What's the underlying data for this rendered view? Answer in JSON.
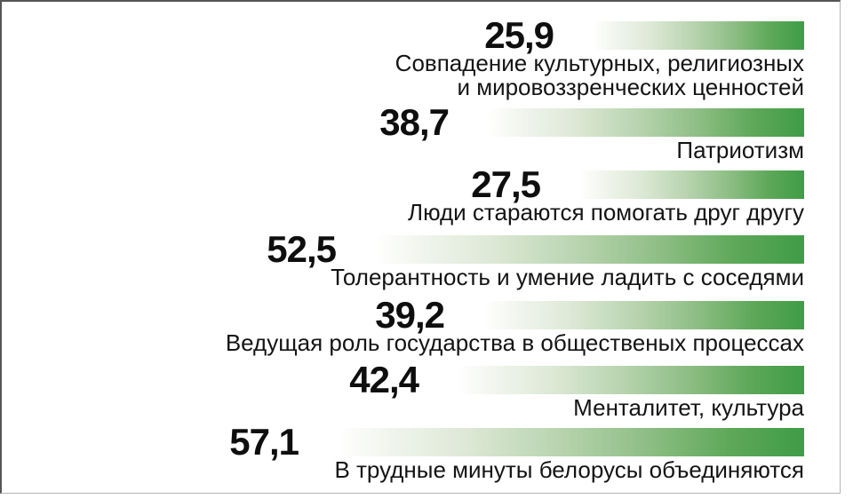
{
  "chart_data": {
    "type": "bar",
    "orientation": "horizontal",
    "bars_right_aligned": true,
    "title": "",
    "xlabel": "",
    "ylabel": "",
    "xlim": [
      0,
      60
    ],
    "grid": false,
    "legend": false,
    "categories": [
      "Совпадение культурных, религиозных и мировоззренческих ценностей",
      "Патриотизм",
      "Люди стараются помогать друг другу",
      "Толерантность и умение ладить с соседями",
      "Ведущая роль государства в общественых процессах",
      "Менталитет, культура",
      "В трудные минуты белорусы объединяются"
    ],
    "values": [
      25.9,
      38.7,
      27.5,
      52.5,
      39.2,
      42.4,
      57.1
    ],
    "value_labels": [
      "25,9",
      "38,7",
      "27,5",
      "52,5",
      "39,2",
      "42,4",
      "57,1"
    ]
  },
  "rows": [
    {
      "value": 25.9,
      "value_label": "25,9",
      "label_lines": [
        "Совпадение культурных, религиозных",
        "и мировоззренческих ценностей"
      ]
    },
    {
      "value": 38.7,
      "value_label": "38,7",
      "label_lines": [
        "Патриотизм"
      ]
    },
    {
      "value": 27.5,
      "value_label": "27,5",
      "label_lines": [
        "Люди стараются помогать друг другу"
      ]
    },
    {
      "value": 52.5,
      "value_label": "52,5",
      "label_lines": [
        "Толерантность и умение ладить с соседями"
      ]
    },
    {
      "value": 39.2,
      "value_label": "39,2",
      "label_lines": [
        "Ведущая роль государства в общественых процессах"
      ]
    },
    {
      "value": 42.4,
      "value_label": "42,4",
      "label_lines": [
        "Менталитет, культура"
      ]
    },
    {
      "value": 57.1,
      "value_label": "57,1",
      "label_lines": [
        "В трудные минуты белорусы объединяются"
      ]
    }
  ],
  "colors": {
    "bar_gradient_start": "#ffffff",
    "bar_gradient_end": "#3f9c46",
    "text": "#141414",
    "frame_dark": "#555555",
    "frame_light": "#b5b5b5"
  }
}
